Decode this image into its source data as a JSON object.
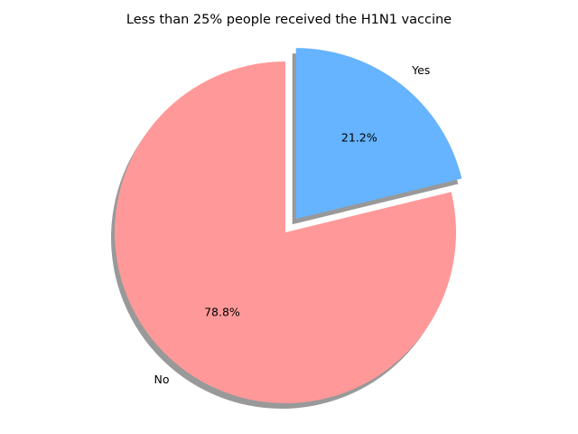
{
  "chart_data": {
    "type": "pie",
    "title": "Less than 25% people received the H1N1 vaccine",
    "slices": [
      {
        "label": "Yes",
        "value": 21.2,
        "percent_label": "21.2%",
        "color": "#66b3ff",
        "exploded": true
      },
      {
        "label": "No",
        "value": 78.8,
        "percent_label": "78.8%",
        "color": "#ff9999",
        "exploded": false
      }
    ],
    "start_angle_deg": 90,
    "direction": "clockwise",
    "shadow": true,
    "legend": "none"
  }
}
